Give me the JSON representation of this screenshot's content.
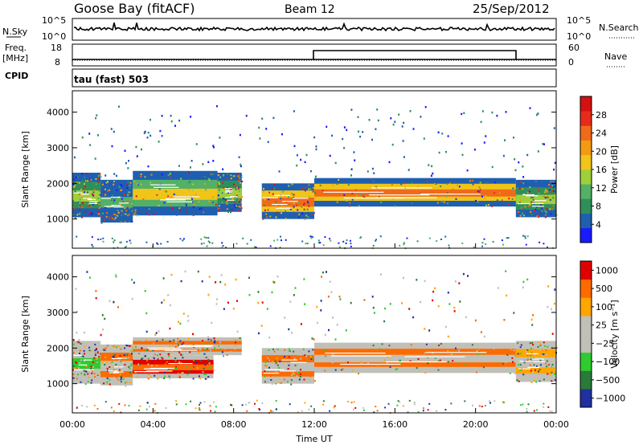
{
  "header": {
    "station": "Goose Bay (fitACF)",
    "beam": "Beam 12",
    "date": "25/Sep/2012"
  },
  "status": {
    "nsky_label": "N.Sky",
    "nsky_ticks": [
      "10^5",
      "10^0"
    ],
    "nsearch_label": "N.Search",
    "freq_label": "Freq.",
    "freq_unit": "[MHz]",
    "freq_ticks": [
      "18",
      "8"
    ],
    "nave_label": "Nave",
    "nave_ticks": [
      "60",
      "0"
    ],
    "cpid_label": "CPID",
    "cpid_value": "tau (fast) 503"
  },
  "colors": {
    "power": [
      "#1a1aff",
      "#1f5fb0",
      "#2f8f5a",
      "#53b066",
      "#9fcf3a",
      "#f0c419",
      "#f49a12",
      "#f06a1a",
      "#e82a1a",
      "#d41010"
    ],
    "velocity": [
      "#e00000",
      "#ff6a00",
      "#ffa500",
      "#c0c0b8",
      "#c0c0b8",
      "#2ecc2e",
      "#2a7a3a",
      "#2030a0"
    ]
  },
  "chart_data": [
    {
      "type": "heatmap",
      "name_panel": "power",
      "xlabel": "",
      "ylabel": "Slant Range [km]",
      "xlim": [
        0,
        24
      ],
      "ylim": [
        180,
        4600
      ],
      "yticks": [
        "1000",
        "2000",
        "3000",
        "4000"
      ],
      "colorbar_label": "Power [dB]",
      "colorbar_ticks": [
        "4",
        "8",
        "12",
        "16",
        "20",
        "24",
        "28"
      ],
      "bands": [
        {
          "t0": 0.0,
          "t1": 1.4,
          "r0": 1050,
          "r1": 2300,
          "level": 4
        },
        {
          "t0": 1.4,
          "t1": 3.0,
          "r0": 900,
          "r1": 2100,
          "level": 3
        },
        {
          "t0": 3.0,
          "t1": 7.2,
          "r0": 1100,
          "r1": 2350,
          "level": 5
        },
        {
          "t0": 7.2,
          "t1": 8.4,
          "r0": 1200,
          "r1": 2300,
          "level": 4
        },
        {
          "t0": 9.4,
          "t1": 12.0,
          "r0": 1000,
          "r1": 2000,
          "level": 7
        },
        {
          "t0": 12.0,
          "t1": 22.0,
          "r0": 1350,
          "r1": 2150,
          "level": 7
        },
        {
          "t0": 22.0,
          "t1": 24.0,
          "r0": 1050,
          "r1": 2100,
          "level": 4
        }
      ]
    },
    {
      "type": "heatmap",
      "name_panel": "velocity",
      "xlabel": "Time UT",
      "ylabel": "Slant Range [km]",
      "xlim": [
        0,
        24
      ],
      "ylim": [
        180,
        4600
      ],
      "xticks": [
        "00:00",
        "04:00",
        "08:00",
        "12:00",
        "16:00",
        "20:00",
        "00:00"
      ],
      "yticks": [
        "1000",
        "2000",
        "3000",
        "4000"
      ],
      "colorbar_label": "Velocity [m s⁻¹]",
      "colorbar_ticks": [
        "1000",
        "500",
        "100",
        "25",
        "−25",
        "−100",
        "−500",
        "−1000"
      ],
      "bands": [
        {
          "t0": 0.0,
          "t1": 1.4,
          "r0": 1000,
          "r1": 2200,
          "level": 5
        },
        {
          "t0": 1.4,
          "t1": 3.0,
          "r0": 950,
          "r1": 2100,
          "level": 3
        },
        {
          "t0": 3.0,
          "t1": 7.0,
          "r0": 1150,
          "r1": 1800,
          "level": 1
        },
        {
          "t0": 3.0,
          "t1": 8.4,
          "r0": 1800,
          "r1": 2300,
          "level": 3
        },
        {
          "t0": 9.4,
          "t1": 12.0,
          "r0": 1000,
          "r1": 2000,
          "level": 3
        },
        {
          "t0": 12.0,
          "t1": 22.0,
          "r0": 1300,
          "r1": 2150,
          "level": 3
        },
        {
          "t0": 22.0,
          "t1": 24.0,
          "r0": 1050,
          "r1": 2200,
          "level": 4
        }
      ]
    }
  ]
}
